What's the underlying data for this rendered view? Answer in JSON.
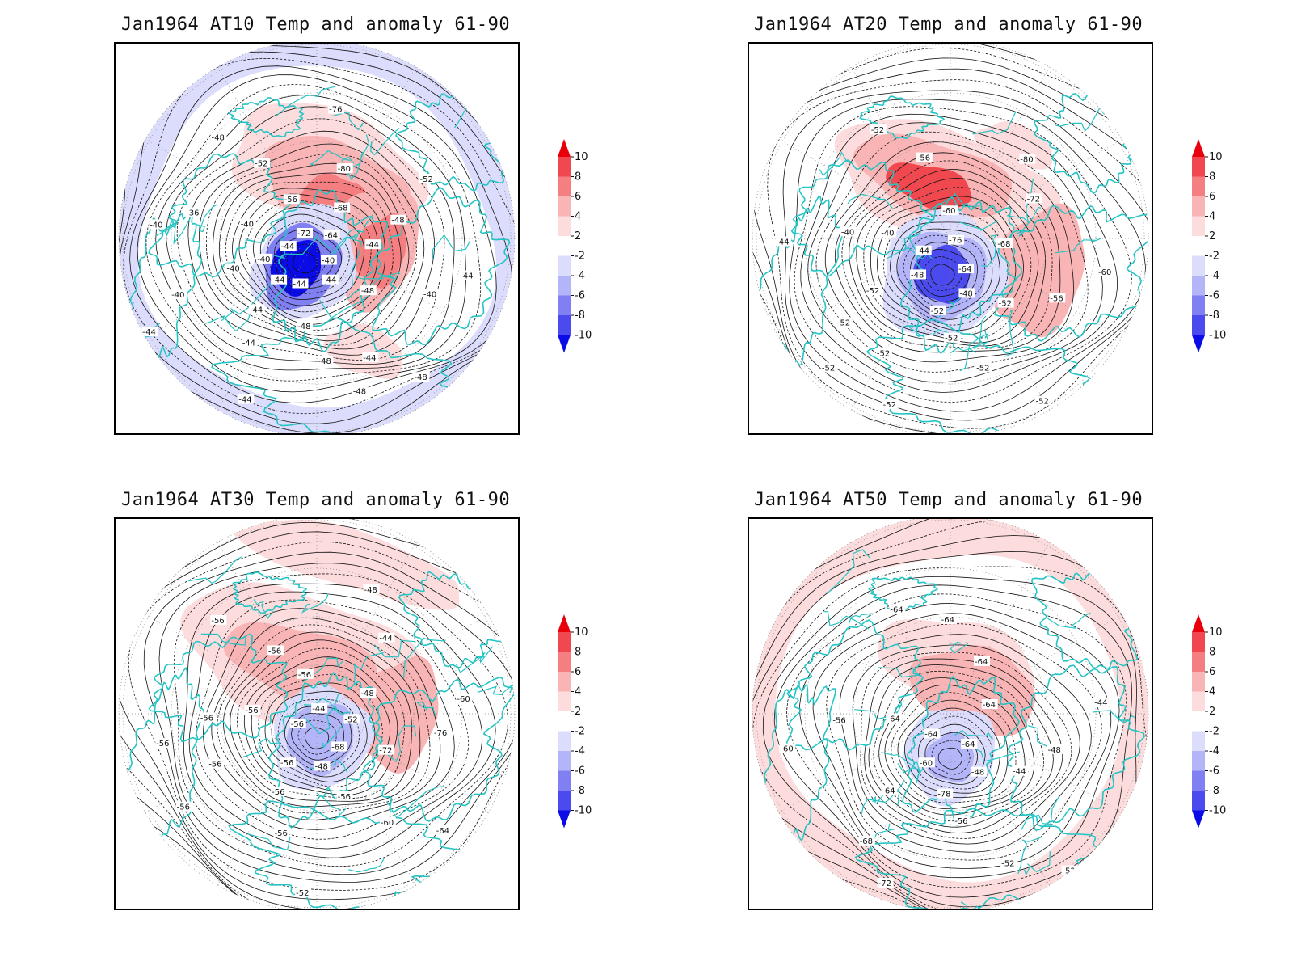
{
  "panels": [
    {
      "title": "Jan1964 AT10 Temp and anomaly 61-90",
      "contour_labels": [
        "-48",
        "-48",
        "-48",
        "-44",
        "-44",
        "-44",
        "-44",
        "-44",
        "-44",
        "-40",
        "-40",
        "-40",
        "-40",
        "-36",
        "-40",
        "-44",
        "-48",
        "-52",
        "-56",
        "-72",
        "-76",
        "-80",
        "-68",
        "-64",
        "-52",
        "-48",
        "-44",
        "-40",
        "-44",
        "-40",
        "-48",
        "-44",
        "-48",
        "-44"
      ]
    },
    {
      "title": "Jan1964 AT20 Temp and anomaly 61-90",
      "contour_labels": [
        "-52",
        "-52",
        "-52",
        "-48",
        "-44",
        "-40",
        "-40",
        "-44",
        "-52",
        "-56",
        "-60",
        "-76",
        "-80",
        "-72",
        "-68",
        "-64",
        "-60",
        "-56",
        "-52",
        "-48",
        "-52",
        "-52",
        "-52",
        "-52",
        "-52",
        "-52"
      ]
    },
    {
      "title": "Jan1964 AT30 Temp and anomaly 61-90",
      "contour_labels": [
        "-56",
        "-56",
        "-56",
        "-56",
        "-56",
        "-56",
        "-56",
        "-44",
        "-48",
        "-44",
        "-48",
        "-52",
        "-60",
        "-76",
        "-72",
        "-68",
        "-64",
        "-60",
        "-56",
        "-48",
        "-52",
        "-56",
        "-56",
        "-56",
        "-56",
        "-56"
      ]
    },
    {
      "title": "Jan1964 AT50 Temp and anomaly 61-90",
      "contour_labels": [
        "-64",
        "-64",
        "-64",
        "-64",
        "-44",
        "-48",
        "-44",
        "-48",
        "-52",
        "-52",
        "-56",
        "-78",
        "-72",
        "-68",
        "-64",
        "-60",
        "-60",
        "-56",
        "-64",
        "-64",
        "-64"
      ]
    }
  ],
  "colorbar": {
    "labels": [
      "10",
      "8",
      "6",
      "4",
      "2",
      "-2",
      "-4",
      "-6",
      "-8",
      "-10"
    ],
    "colors": [
      "#e8000b",
      "#f0484e",
      "#f57e80",
      "#f9b4b5",
      "#fcdcdc",
      "#ffffff",
      "#dcdcfc",
      "#b4b4f8",
      "#8080f2",
      "#4a4aee",
      "#0b0be8"
    ]
  },
  "colors": {
    "coastline": "#25c4c4",
    "contour": "#111111",
    "grid": "#888888"
  }
}
